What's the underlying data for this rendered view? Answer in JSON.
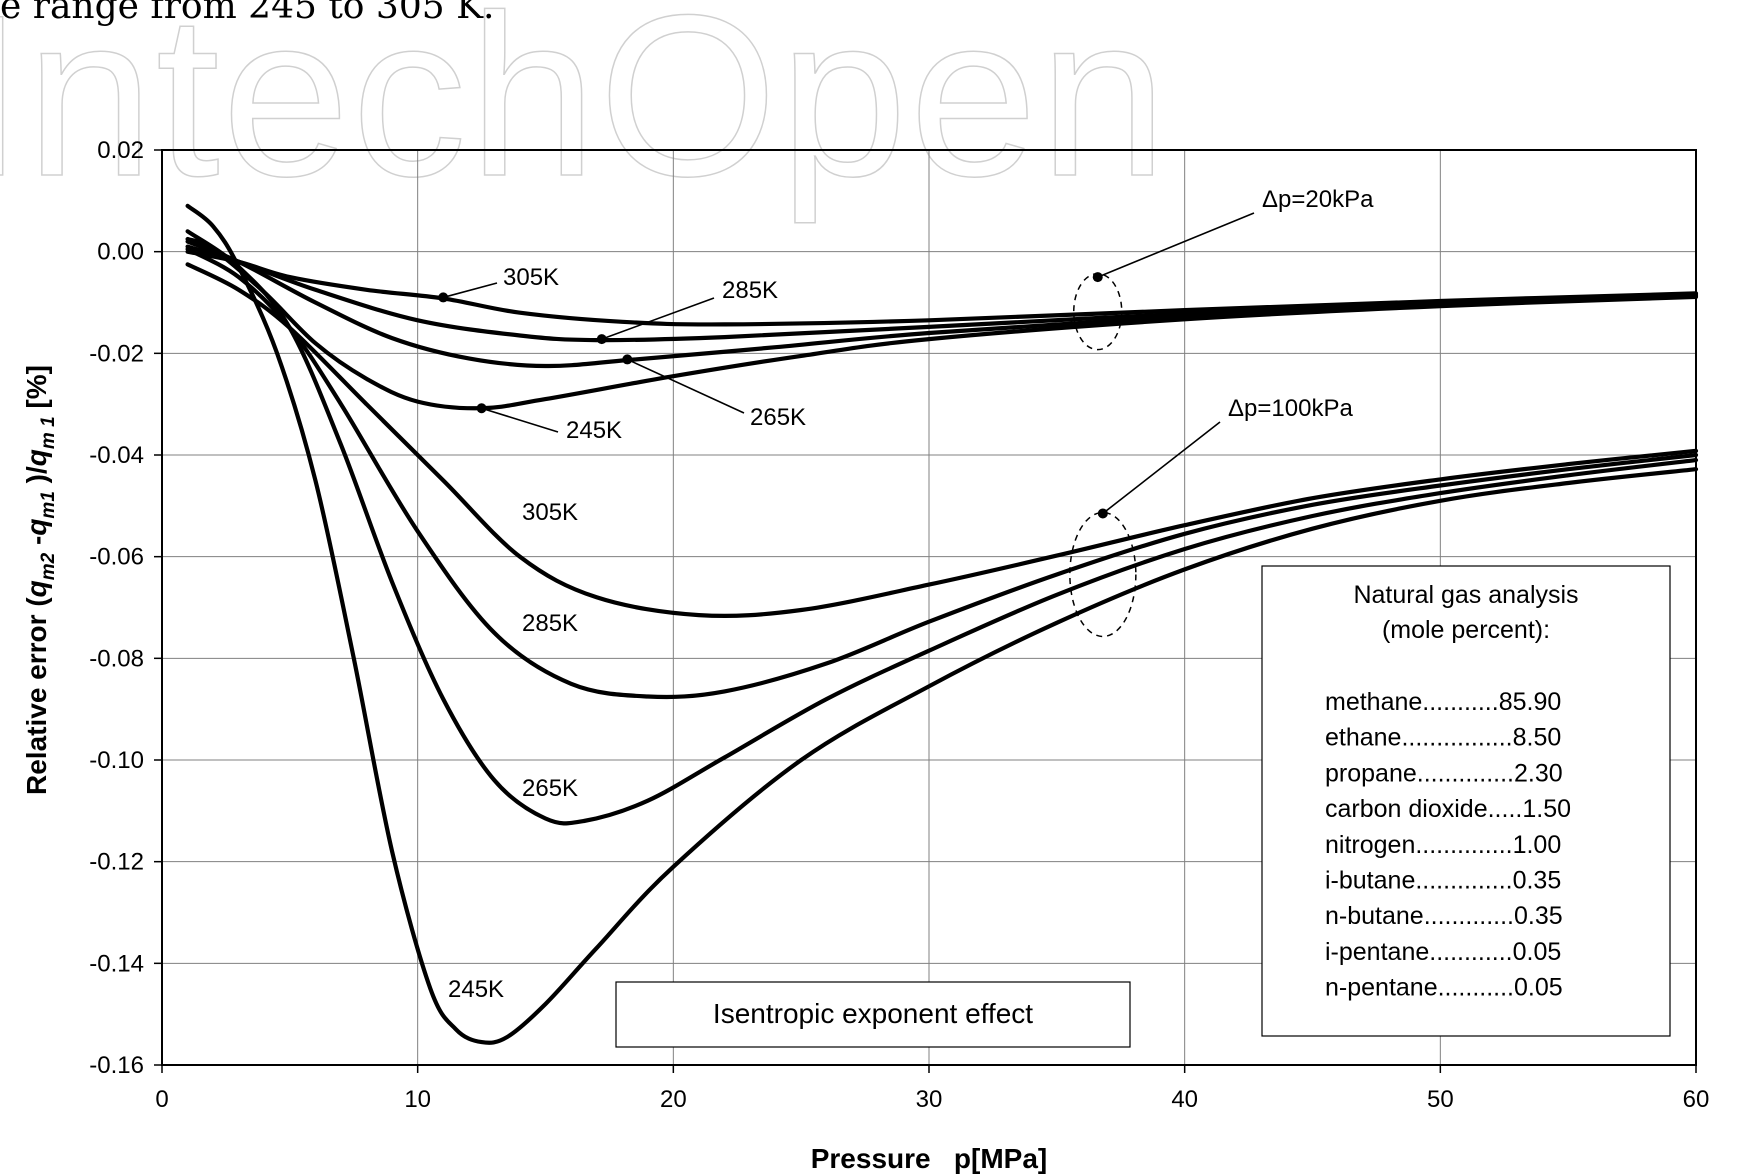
{
  "page": {
    "header_text": "e range from 245 to 305 K.",
    "watermark": "IntechOpen"
  },
  "colors": {
    "curve": "#000000",
    "grid": "#808080",
    "watermark": "#d9d9d9"
  },
  "chart_data": {
    "type": "line",
    "xlabel": "Pressure   p[MPa]",
    "ylabel": "Relative error (qm2-qm1)/qm1 [%]",
    "ylabel_parts": {
      "prefix": "Relative error (",
      "q1": "q",
      "s1": "m2",
      "mid": " -",
      "q2": "q",
      "s2": "m1",
      "close": " )/",
      "q3": "q",
      "s3": "m 1",
      "suffix": " [%]"
    },
    "xlim": [
      0,
      60
    ],
    "ylim": [
      -0.16,
      0.02
    ],
    "x_ticks": [
      0,
      10,
      20,
      30,
      40,
      50,
      60
    ],
    "y_ticks": [
      0.02,
      0.0,
      -0.02,
      -0.04,
      -0.06,
      -0.08,
      -0.1,
      -0.12,
      -0.14,
      -0.16
    ],
    "y_tick_labels": [
      "0.02",
      "0.00",
      "-0.02",
      "-0.04",
      "-0.06",
      "-0.08",
      "-0.10",
      "-0.12",
      "-0.14",
      "-0.16"
    ],
    "grid": true,
    "legend": "none",
    "series": [
      {
        "group": "Δp=20kPa",
        "temperature": "305K",
        "points": [
          [
            1,
            0.0
          ],
          [
            3,
            -0.002
          ],
          [
            5,
            -0.005
          ],
          [
            8,
            -0.0075
          ],
          [
            11,
            -0.0092
          ],
          [
            14,
            -0.012
          ],
          [
            18,
            -0.0138
          ],
          [
            22,
            -0.0143
          ],
          [
            30,
            -0.0135
          ],
          [
            40,
            -0.0115
          ],
          [
            50,
            -0.0097
          ],
          [
            60,
            -0.0082
          ]
        ]
      },
      {
        "group": "Δp=20kPa",
        "temperature": "285K",
        "points": [
          [
            1,
            0.001
          ],
          [
            3,
            -0.002
          ],
          [
            6,
            -0.0075
          ],
          [
            10,
            -0.0135
          ],
          [
            14,
            -0.0165
          ],
          [
            17,
            -0.0174
          ],
          [
            22,
            -0.0168
          ],
          [
            30,
            -0.0148
          ],
          [
            40,
            -0.0122
          ],
          [
            50,
            -0.0101
          ],
          [
            60,
            -0.0085
          ]
        ]
      },
      {
        "group": "Δp=20kPa",
        "temperature": "265K",
        "points": [
          [
            1,
            0.002
          ],
          [
            3,
            -0.002
          ],
          [
            6,
            -0.01
          ],
          [
            9,
            -0.017
          ],
          [
            12,
            -0.021
          ],
          [
            15,
            -0.0225
          ],
          [
            18.3,
            -0.0213
          ],
          [
            24,
            -0.0188
          ],
          [
            30,
            -0.016
          ],
          [
            40,
            -0.0128
          ],
          [
            50,
            -0.0104
          ],
          [
            60,
            -0.0087
          ]
        ]
      },
      {
        "group": "Δp=20kPa",
        "temperature": "245K",
        "points": [
          [
            1,
            0.0025
          ],
          [
            2,
            0.0005
          ],
          [
            4,
            -0.008
          ],
          [
            6,
            -0.018
          ],
          [
            8,
            -0.025
          ],
          [
            10,
            -0.0295
          ],
          [
            12.5,
            -0.0308
          ],
          [
            15,
            -0.029
          ],
          [
            20,
            -0.0245
          ],
          [
            25,
            -0.0205
          ],
          [
            30,
            -0.0172
          ],
          [
            40,
            -0.0133
          ],
          [
            50,
            -0.0107
          ],
          [
            60,
            -0.0089
          ]
        ]
      },
      {
        "group": "Δp=100kPa",
        "temperature": "305K",
        "points": [
          [
            1,
            -0.0025
          ],
          [
            3,
            -0.0075
          ],
          [
            5,
            -0.015
          ],
          [
            8,
            -0.03
          ],
          [
            11,
            -0.045
          ],
          [
            14,
            -0.06
          ],
          [
            17,
            -0.068
          ],
          [
            21,
            -0.0715
          ],
          [
            25,
            -0.0705
          ],
          [
            30,
            -0.0655
          ],
          [
            35,
            -0.0598
          ],
          [
            40,
            -0.0538
          ],
          [
            45,
            -0.0485
          ],
          [
            50,
            -0.0448
          ],
          [
            55,
            -0.0418
          ],
          [
            60,
            -0.0392
          ]
        ]
      },
      {
        "group": "Δp=100kPa",
        "temperature": "285K",
        "points": [
          [
            1,
            0.0005
          ],
          [
            3,
            -0.005
          ],
          [
            5,
            -0.015
          ],
          [
            7,
            -0.03
          ],
          [
            10,
            -0.055
          ],
          [
            13,
            -0.075
          ],
          [
            16,
            -0.085
          ],
          [
            19,
            -0.0875
          ],
          [
            22,
            -0.0865
          ],
          [
            26,
            -0.081
          ],
          [
            30,
            -0.0728
          ],
          [
            35,
            -0.0635
          ],
          [
            40,
            -0.0555
          ],
          [
            45,
            -0.0498
          ],
          [
            50,
            -0.046
          ],
          [
            55,
            -0.0428
          ],
          [
            60,
            -0.04
          ]
        ]
      },
      {
        "group": "Δp=100kPa",
        "temperature": "265K",
        "points": [
          [
            1,
            0.004
          ],
          [
            3,
            -0.003
          ],
          [
            5,
            -0.015
          ],
          [
            7,
            -0.038
          ],
          [
            9,
            -0.065
          ],
          [
            11,
            -0.088
          ],
          [
            13,
            -0.104
          ],
          [
            15,
            -0.1115
          ],
          [
            16.5,
            -0.112
          ],
          [
            19,
            -0.108
          ],
          [
            22,
            -0.0995
          ],
          [
            26,
            -0.088
          ],
          [
            30,
            -0.0785
          ],
          [
            35,
            -0.0675
          ],
          [
            40,
            -0.0585
          ],
          [
            45,
            -0.052
          ],
          [
            50,
            -0.0475
          ],
          [
            55,
            -0.044
          ],
          [
            60,
            -0.041
          ]
        ]
      },
      {
        "group": "Δp=100kPa",
        "temperature": "245K",
        "points": [
          [
            1,
            0.009
          ],
          [
            2,
            0.005
          ],
          [
            3,
            -0.003
          ],
          [
            4.5,
            -0.02
          ],
          [
            6,
            -0.045
          ],
          [
            7.5,
            -0.08
          ],
          [
            9,
            -0.118
          ],
          [
            10.5,
            -0.145
          ],
          [
            11.5,
            -0.153
          ],
          [
            12.5,
            -0.1555
          ],
          [
            13.5,
            -0.1545
          ],
          [
            15,
            -0.148
          ],
          [
            17,
            -0.137
          ],
          [
            20,
            -0.121
          ],
          [
            25,
            -0.1
          ],
          [
            30,
            -0.0855
          ],
          [
            35,
            -0.073
          ],
          [
            40,
            -0.0625
          ],
          [
            45,
            -0.0545
          ],
          [
            50,
            -0.049
          ],
          [
            55,
            -0.0455
          ],
          [
            60,
            -0.0428
          ]
        ]
      }
    ],
    "markers": [
      [
        11,
        -0.009
      ],
      [
        17.2,
        -0.0172
      ],
      [
        18.2,
        -0.0212
      ],
      [
        12.5,
        -0.0308
      ],
      [
        36.6,
        -0.005
      ],
      [
        36.8,
        -0.0515
      ]
    ],
    "annotations": {
      "group_20": {
        "label": "Δp=20kPa",
        "x": 36.6,
        "y": -0.005
      },
      "group_100": {
        "label": "Δp=100kPa",
        "x": 36.8,
        "y": -0.0515
      },
      "t20_305": {
        "label": "305K",
        "x": 11,
        "y": -0.009
      },
      "t20_285": {
        "label": "285K",
        "x": 17.2,
        "y": -0.0172
      },
      "t20_265": {
        "label": "265K",
        "x": 18.2,
        "y": -0.0212
      },
      "t20_245": {
        "label": "245K",
        "x": 12.5,
        "y": -0.0308
      },
      "t100_305": {
        "label": "305K"
      },
      "t100_285": {
        "label": "285K"
      },
      "t100_265": {
        "label": "265K"
      },
      "t100_245": {
        "label": "245K"
      }
    },
    "title_box": "Isentropic exponent effect",
    "analysis_box": {
      "title_line1": "Natural gas analysis",
      "title_line2": "(mole percent):",
      "rows": [
        "methane...........85.90",
        "ethane................8.50",
        "propane..............2.30",
        "carbon dioxide.....1.50",
        "nitrogen..............1.00",
        "i-butane..............0.35",
        "n-butane.............0.35",
        "i-pentane............0.05",
        "n-pentane...........0.05"
      ]
    }
  }
}
